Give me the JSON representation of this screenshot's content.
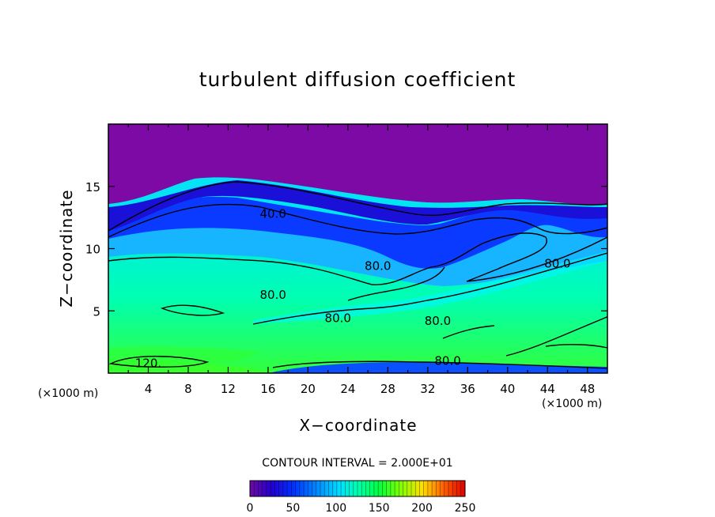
{
  "chart_data": {
    "type": "contour",
    "title": "turbulent diffusion coefficient",
    "xlabel": "X−coordinate",
    "ylabel": "Z−coordinate",
    "x_unit_left": "(×1000 m)",
    "x_unit_right": "(×1000 m)",
    "xlim": [
      0,
      50
    ],
    "ylim": [
      0,
      20
    ],
    "xticks": [
      "4",
      "8",
      "12",
      "16",
      "20",
      "24",
      "28",
      "32",
      "36",
      "40",
      "44",
      "48"
    ],
    "yticks": [
      "5",
      "10",
      "15"
    ],
    "contour_interval_text": "CONTOUR INTERVAL = 2.000E+01",
    "contour_labels": [
      {
        "text": "40.0",
        "x": 16.5,
        "z": 12.8
      },
      {
        "text": "80.0",
        "x": 27.0,
        "z": 8.6
      },
      {
        "text": "80.0",
        "x": 16.5,
        "z": 6.3
      },
      {
        "text": "80.0",
        "x": 23.0,
        "z": 4.4
      },
      {
        "text": "80.0",
        "x": 33.0,
        "z": 4.2
      },
      {
        "text": "80.0",
        "x": 45.0,
        "z": 8.8
      },
      {
        "text": "80.0",
        "x": 34.0,
        "z": 1.0
      },
      {
        "text": "120.",
        "x": 4.0,
        "z": 0.8
      }
    ],
    "colorbar": {
      "min": 0,
      "max": 250,
      "tick_labels": [
        "0",
        "50",
        "100",
        "150",
        "200",
        "250"
      ],
      "colors": [
        "#7f0aa8",
        "#3a00c8",
        "#0018ff",
        "#0070ff",
        "#00c4ff",
        "#00ffd0",
        "#00ff60",
        "#40ff00",
        "#b0ff00",
        "#ffd000",
        "#ff6000",
        "#e00000"
      ]
    },
    "colors": {
      "upper_purple": "#7d0aa5",
      "blue_band": "#1a3bff",
      "light_blue": "#1eaaff",
      "cyan": "#00ddf2",
      "green": "#00ff7a",
      "bright_green": "#3cff2a"
    }
  }
}
